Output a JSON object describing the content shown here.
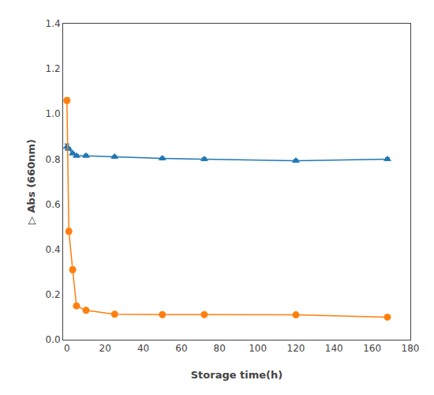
{
  "chart_data": {
    "type": "line",
    "xlabel": "Storage time(h)",
    "ylabel": "▷ Abs (660nm)",
    "xlim": [
      -2,
      180
    ],
    "ylim": [
      0.0,
      1.4
    ],
    "xticks": [
      0,
      20,
      40,
      60,
      80,
      100,
      120,
      140,
      160,
      180
    ],
    "yticks": [
      {
        "value": 0.0,
        "label": "0.0"
      },
      0.2,
      0.4,
      0.6,
      0.8,
      {
        "value": 1.0,
        "label": "1.0"
      },
      1.2,
      1.4
    ],
    "grid": false,
    "series": [
      {
        "marker": "triangle-up",
        "line_style": "solid",
        "x": [
          0,
          1,
          3,
          5,
          10,
          25,
          50,
          72,
          120,
          168
        ],
        "values": [
          0.855,
          0.845,
          0.825,
          0.815,
          0.815,
          0.81,
          0.803,
          0.8,
          0.793,
          0.8
        ],
        "yerr": [
          0.012,
          0.006,
          0.006,
          0.006,
          0.006,
          0.006,
          0.006,
          0.006,
          0.006,
          0.006
        ]
      },
      {
        "marker": "circle",
        "line_style": "solid",
        "x": [
          0,
          1,
          3,
          5,
          10,
          25,
          50,
          72,
          120,
          168
        ],
        "values": [
          1.06,
          0.48,
          0.31,
          0.15,
          0.13,
          0.113,
          0.111,
          0.111,
          0.11,
          0.1
        ],
        "yerr": [
          0.012,
          0.012,
          0.012,
          0.008,
          0.006,
          0.006,
          0.006,
          0.006,
          0.006,
          0.006
        ]
      }
    ]
  }
}
